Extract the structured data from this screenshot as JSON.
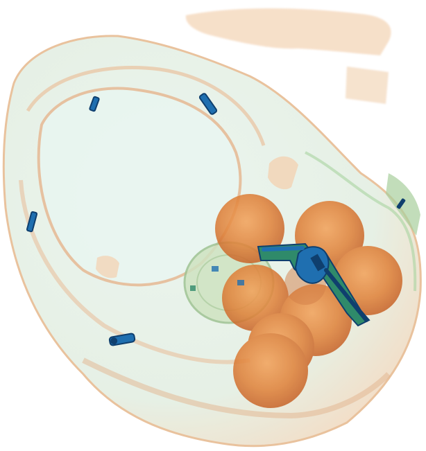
{
  "image": {
    "kind": "x-ray baggage scan",
    "colors": {
      "background": "#ffffff",
      "organic_light": "#f1c79a",
      "organic_mid": "#e6a878",
      "organic_dense": "#e0823a",
      "organic_core": "#c8652a",
      "mixed_green": "#b9d8b0",
      "metal_blue": "#1f6fb0",
      "metal_dark": "#0f3f6e",
      "metal_green": "#2f8a6a"
    },
    "objects": [
      {
        "name": "bag-outline",
        "material": "organic"
      },
      {
        "name": "strap",
        "material": "organic"
      },
      {
        "name": "orange",
        "material": "organic",
        "count": 8
      },
      {
        "name": "revolver",
        "material": "metal"
      },
      {
        "name": "zipper-pull",
        "material": "metal",
        "count": 5
      },
      {
        "name": "plate-disc",
        "material": "mixed"
      }
    ]
  }
}
